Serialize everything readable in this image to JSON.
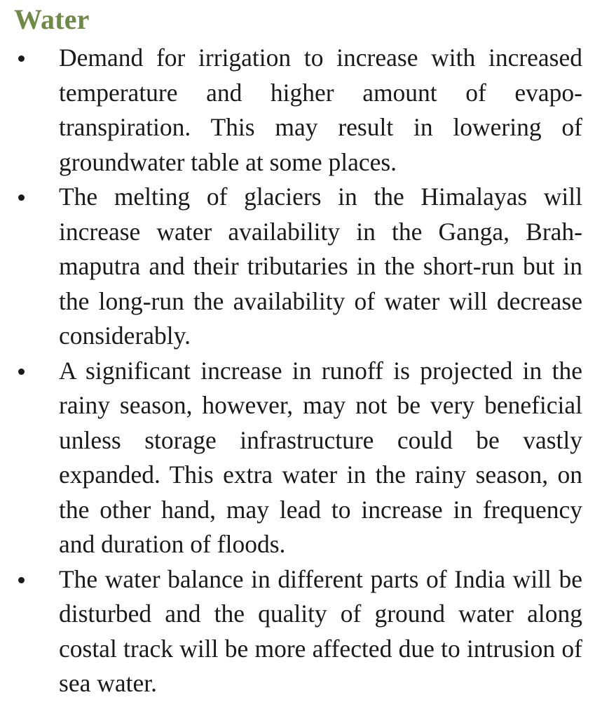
{
  "section": {
    "heading": "Water"
  },
  "bullets": [
    {
      "text": "Demand for irrigation to increase with in­creased temperature and higher amount of evapo-transpiration. This may result in lower­ing of groundwater table at some places."
    },
    {
      "text": "The melting of glaciers in the Himalayas will increase water availability in the Ganga, Brah­maputra and their tributaries in the short-run but in the long-run the availability of water will decrease considerably."
    },
    {
      "text": "A significant increase in runoff is projected in the rainy season, however, may not be very ben­eficial unless storage infrastructure could be vastly expanded. This extra water in the rainy season, on the other hand, may lead to increase in frequency and duration of floods."
    },
    {
      "text": "The water balance in different parts of India will be disturbed and the quality of ground water along costal track will be more affected due to intrusion of sea water."
    }
  ],
  "colors": {
    "heading": "#6f8a48",
    "text": "#1a1a1a",
    "background": "#ffffff"
  }
}
